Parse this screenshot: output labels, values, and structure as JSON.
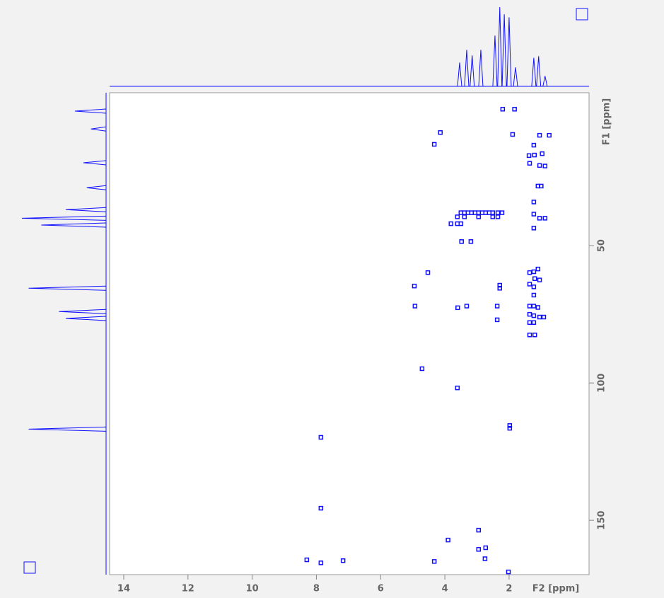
{
  "chart_data": {
    "type": "nmr2d",
    "x_label": "F2 [ppm]",
    "y_label": "F1 [ppm]",
    "xlim": [
      14.44,
      -0.49
    ],
    "ylim": [
      -5.7,
      169.8
    ],
    "xticks": [
      14,
      12,
      10,
      8,
      6,
      4,
      2
    ],
    "yticks": [
      50,
      100,
      150
    ],
    "color": "#1010ff",
    "x": [
      2.2,
      1.83,
      4.14,
      4.33,
      1.89,
      1.05,
      0.75,
      1.23,
      1.38,
      1.21,
      0.97,
      1.36,
      1.05,
      0.88,
      1.1,
      1.0,
      1.23,
      1.23,
      1.05,
      0.88,
      1.23,
      3.5,
      3.39,
      3.28,
      3.17,
      3.06,
      2.95,
      2.84,
      2.73,
      2.62,
      2.51,
      2.35,
      2.22,
      3.61,
      3.39,
      2.95,
      2.51,
      2.35,
      3.81,
      3.61,
      3.5,
      3.48,
      3.19,
      4.53,
      4.95,
      2.29,
      2.29,
      4.93,
      3.6,
      3.32,
      2.37,
      2.37,
      1.36,
      1.23,
      1.1,
      1.2,
      1.05,
      1.36,
      1.23,
      1.23,
      1.36,
      1.23,
      1.1,
      1.36,
      1.23,
      1.05,
      0.92,
      1.36,
      1.23,
      1.36,
      1.2,
      4.71,
      3.61,
      1.98,
      1.98,
      7.86,
      7.86,
      2.95,
      3.9,
      2.95,
      2.73,
      2.75,
      8.3,
      7.86,
      7.17,
      4.33,
      2.02
    ],
    "y": [
      0.3,
      0.3,
      8.8,
      13.1,
      9.5,
      9.8,
      9.8,
      13.4,
      17.2,
      17,
      16.5,
      20,
      20.8,
      21,
      28.3,
      28.3,
      34.1,
      38.5,
      40,
      40,
      43.6,
      38,
      38,
      38,
      38,
      38,
      38,
      38,
      38,
      38,
      38,
      38,
      38,
      39.5,
      39.5,
      39.5,
      39.5,
      39.5,
      42,
      42,
      42,
      48.5,
      48.5,
      59.8,
      64.7,
      64.4,
      65.5,
      72,
      72.6,
      72,
      72,
      77,
      59.8,
      59.5,
      58.5,
      62,
      62.5,
      64,
      65,
      68,
      72,
      72,
      72.5,
      75,
      75.5,
      76,
      76,
      78,
      78,
      82.5,
      82.5,
      94.8,
      101.8,
      115.5,
      116.5,
      119.8,
      145.6,
      153.6,
      157.2,
      160.6,
      160,
      164,
      164.4,
      165.5,
      164.7,
      165,
      168.8
    ],
    "f2_projection": {
      "x": [
        3.54,
        3.32,
        3.15,
        2.88,
        2.44,
        2.29,
        2.15,
        2.0,
        1.8,
        1.23,
        1.08,
        0.88
      ],
      "values": [
        30,
        46,
        39,
        46,
        64,
        100,
        91,
        87,
        24,
        36,
        38,
        13
      ]
    },
    "f1_projection": {
      "y": [
        1.0,
        7.5,
        19.8,
        28.9,
        36.9,
        40,
        42.5,
        65.5,
        74,
        76.5,
        116.8
      ],
      "values": [
        37,
        18,
        27,
        23,
        48,
        100,
        77,
        92,
        56,
        48,
        92
      ]
    }
  }
}
